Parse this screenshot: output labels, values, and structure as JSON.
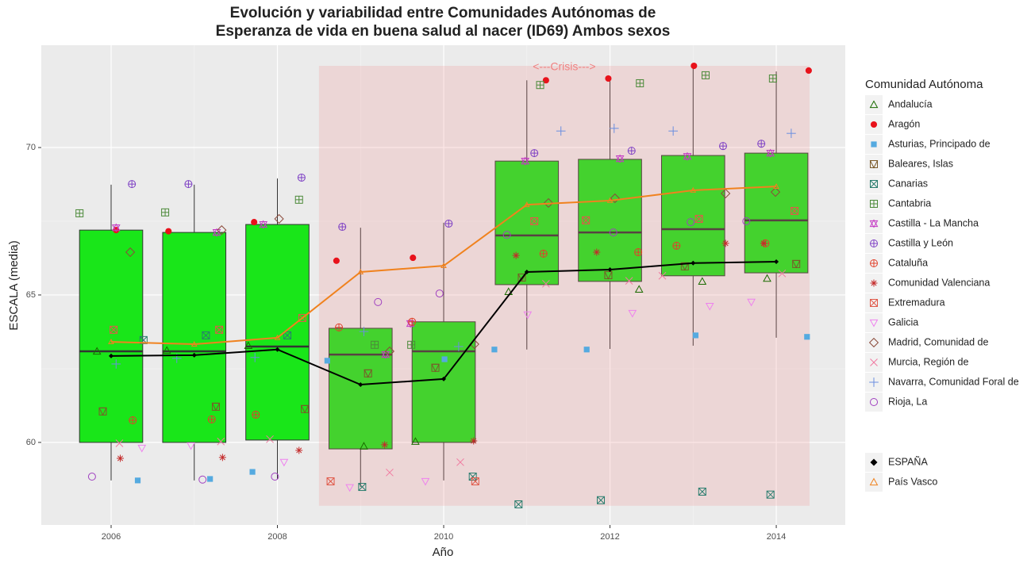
{
  "chart_data": {
    "type": "box",
    "title": "Evolución y variabilidad entre Comunidades Autónomas de",
    "subtitle": "Esperanza de vida en buena salud al nacer (ID69) Ambos sexos",
    "x_label": "Año",
    "y_label": "ESCALA (media)",
    "xlim": [
      2005.16,
      2014.83
    ],
    "ylim": [
      57.2,
      73.47
    ],
    "xticks": [
      2006,
      2008,
      2010,
      2012,
      2014
    ],
    "yticks": [
      60,
      65,
      70
    ],
    "grid": true,
    "box_color": "#19e619",
    "boxes": {
      "x": [
        2006,
        2007,
        2008,
        2009,
        2010,
        2011,
        2012,
        2013,
        2014
      ],
      "whisker_low": [
        58.71,
        58.71,
        58.76,
        58.49,
        58.71,
        63.15,
        63.17,
        63.28,
        63.55
      ],
      "q1": [
        60.0,
        60.0,
        60.08,
        59.78,
        60.0,
        65.35,
        65.46,
        65.65,
        65.75
      ],
      "median": [
        63.09,
        63.09,
        63.25,
        62.98,
        63.09,
        67.02,
        67.12,
        67.23,
        67.53
      ],
      "q3": [
        67.2,
        67.12,
        67.39,
        63.87,
        64.09,
        69.54,
        69.6,
        69.73,
        69.81
      ],
      "whisker_high": [
        68.74,
        68.74,
        68.95,
        67.28,
        67.45,
        72.28,
        72.39,
        72.82,
        72.58
      ]
    },
    "crisis": {
      "label": "<---Crisis--->",
      "xlim": [
        2008.5,
        2014.4
      ],
      "ylim": [
        57.85,
        72.77
      ]
    },
    "legend_title": "Comunidad Autónoma",
    "series": [
      {
        "name": "Andalucía",
        "color": "#1a6b00",
        "shape": "triangle",
        "x": [
          2005.83,
          2006.67,
          2007.65,
          2009.04,
          2009.66,
          2010.78,
          2012.35,
          2013.11,
          2013.89
        ],
        "values": [
          63.09,
          63.12,
          63.28,
          59.87,
          60.03,
          65.11,
          65.19,
          65.46,
          65.56
        ]
      },
      {
        "name": "Aragón",
        "color": "#e8121b",
        "shape": "dot",
        "x": [
          2006.06,
          2006.69,
          2007.72,
          2008.71,
          2009.63,
          2011.23,
          2011.98,
          2013.01,
          2014.39
        ],
        "values": [
          67.2,
          67.16,
          67.47,
          66.16,
          66.26,
          72.28,
          72.34,
          72.77,
          72.61
        ]
      },
      {
        "name": "Asturias, Principado de",
        "color": "#55aae0",
        "shape": "square",
        "x": [
          2006.32,
          2007.19,
          2007.7,
          2008.6,
          2010.01,
          2010.61,
          2011.72,
          2013.03,
          2014.37
        ],
        "values": [
          58.71,
          58.76,
          59.0,
          62.77,
          62.82,
          63.15,
          63.15,
          63.63,
          63.58
        ]
      },
      {
        "name": "Baleares, Islas",
        "color": "#7a5a2a",
        "shape": "square-triangle",
        "x": [
          2005.9,
          2007.26,
          2008.33,
          2009.09,
          2009.9,
          2010.94,
          2011.98,
          2012.9,
          2014.24
        ],
        "values": [
          61.05,
          61.21,
          61.13,
          62.34,
          62.53,
          65.59,
          65.67,
          65.97,
          66.05
        ]
      },
      {
        "name": "Canarias",
        "color": "#2a7d6e",
        "shape": "square-x",
        "x": [
          2006.39,
          2007.14,
          2008.12,
          2009.02,
          2010.35,
          2010.9,
          2011.89,
          2013.11,
          2013.93
        ],
        "values": [
          63.47,
          63.63,
          63.63,
          58.49,
          58.84,
          57.9,
          58.04,
          58.33,
          58.23
        ]
      },
      {
        "name": "Cantabria",
        "color": "#4c8a3a",
        "shape": "square-plus",
        "x": [
          2005.62,
          2006.65,
          2008.26,
          2009.17,
          2009.61,
          2011.16,
          2012.36,
          2013.15,
          2013.96
        ],
        "values": [
          67.77,
          67.8,
          68.23,
          63.31,
          63.31,
          72.12,
          72.18,
          72.45,
          72.34
        ]
      },
      {
        "name": "Castilla - La Mancha",
        "color": "#c43ac4",
        "shape": "star",
        "x": [
          2006.06,
          2007.27,
          2007.83,
          2009.3,
          2009.6,
          2010.98,
          2012.12,
          2012.93,
          2013.93
        ],
        "values": [
          67.28,
          67.12,
          67.39,
          62.98,
          64.03,
          69.54,
          69.62,
          69.7,
          69.81
        ]
      },
      {
        "name": "Castilla y León",
        "color": "#7d3fc4",
        "shape": "circle-plus",
        "x": [
          2006.25,
          2006.93,
          2008.29,
          2008.78,
          2010.06,
          2011.09,
          2012.26,
          2013.36,
          2013.82
        ],
        "values": [
          68.76,
          68.76,
          68.98,
          67.31,
          67.42,
          69.81,
          69.89,
          70.05,
          70.13
        ]
      },
      {
        "name": "Cataluña",
        "color": "#e0402a",
        "shape": "circle-plus",
        "x": [
          2006.26,
          2007.21,
          2007.74,
          2008.74,
          2009.62,
          2011.2,
          2012.34,
          2012.8,
          2013.87
        ],
        "values": [
          60.75,
          60.78,
          60.94,
          63.9,
          64.09,
          66.4,
          66.45,
          66.67,
          66.75
        ]
      },
      {
        "name": "Comunidad Valenciana",
        "color": "#c42a2a",
        "shape": "asterisk",
        "x": [
          2006.11,
          2007.34,
          2008.26,
          2009.29,
          2010.36,
          2010.87,
          2011.84,
          2013.39,
          2013.85
        ],
        "values": [
          59.46,
          59.49,
          59.73,
          59.92,
          60.05,
          66.34,
          66.45,
          66.75,
          66.75
        ]
      },
      {
        "name": "Extremadura",
        "color": "#e05a4a",
        "shape": "square-x",
        "x": [
          2006.03,
          2007.3,
          2008.3,
          2008.64,
          2010.38,
          2011.09,
          2011.71,
          2013.07,
          2014.22
        ],
        "values": [
          63.82,
          63.82,
          64.22,
          58.68,
          58.68,
          67.5,
          67.53,
          67.58,
          67.85
        ]
      },
      {
        "name": "Galicia",
        "color": "#ee82ee",
        "shape": "triangle-down",
        "x": [
          2006.37,
          2006.96,
          2008.08,
          2008.87,
          2009.78,
          2011.01,
          2012.27,
          2013.2,
          2013.7
        ],
        "values": [
          59.81,
          59.89,
          59.33,
          58.47,
          58.68,
          64.33,
          64.38,
          64.62,
          64.76
        ]
      },
      {
        "name": "Madrid, Comunidad de",
        "color": "#8b4a3a",
        "shape": "diamond",
        "x": [
          2006.23,
          2007.33,
          2008.02,
          2009.35,
          2010.37,
          2011.26,
          2012.06,
          2013.39,
          2013.99
        ],
        "values": [
          66.45,
          67.2,
          67.58,
          63.09,
          63.33,
          68.12,
          68.28,
          68.44,
          68.49
        ]
      },
      {
        "name": "Murcia, Región de",
        "color": "#f07aa0",
        "shape": "x",
        "x": [
          2006.1,
          2007.32,
          2007.91,
          2009.35,
          2010.2,
          2011.23,
          2012.23,
          2012.63,
          2014.07
        ],
        "values": [
          59.97,
          60.03,
          60.11,
          58.98,
          59.33,
          65.38,
          65.48,
          65.65,
          65.73
        ]
      },
      {
        "name": "Navarra, Comunidad Foral de",
        "color": "#6a8ee0",
        "shape": "plus",
        "x": [
          2006.06,
          2006.79,
          2007.73,
          2009.04,
          2010.18,
          2011.41,
          2012.05,
          2012.76,
          2014.18
        ],
        "values": [
          62.66,
          62.85,
          62.88,
          63.76,
          63.25,
          70.56,
          70.65,
          70.56,
          70.48
        ]
      },
      {
        "name": "Rioja, La",
        "color": "#a040c0",
        "shape": "circle",
        "x": [
          2005.77,
          2007.1,
          2007.97,
          2009.21,
          2009.95,
          2010.76,
          2012.04,
          2012.97,
          2013.64
        ],
        "values": [
          58.84,
          58.74,
          58.84,
          64.76,
          65.05,
          67.04,
          67.12,
          67.47,
          67.5
        ]
      }
    ],
    "lines": [
      {
        "name": "ESPAÑA",
        "color": "#000000",
        "shape": "diamond-filled",
        "x": [
          2006,
          2007,
          2008,
          2009,
          2010,
          2011,
          2012,
          2013,
          2014
        ],
        "values": [
          62.93,
          62.96,
          63.15,
          61.96,
          62.15,
          65.78,
          65.86,
          66.08,
          66.13
        ]
      },
      {
        "name": "País Vasco",
        "color": "#f0821e",
        "shape": "triangle",
        "x": [
          2006,
          2007,
          2008,
          2009,
          2010,
          2011,
          2012,
          2013,
          2014
        ],
        "values": [
          63.41,
          63.33,
          63.55,
          65.78,
          65.99,
          68.06,
          68.2,
          68.55,
          68.68
        ]
      }
    ]
  }
}
